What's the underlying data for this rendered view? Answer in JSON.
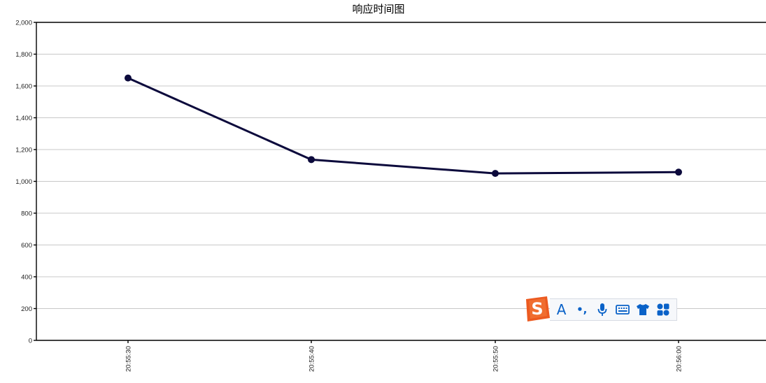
{
  "chart_data": {
    "type": "line",
    "title": "响应时间图",
    "xlabel": "",
    "ylabel": "",
    "categories": [
      "20:55:30",
      "20:55:40",
      "20:55:50",
      "20:56:00"
    ],
    "series": [
      {
        "values": [
          1650,
          1137,
          1050,
          1058
        ]
      }
    ],
    "ylim": [
      0,
      2000
    ],
    "yticks": [
      0,
      200,
      400,
      600,
      800,
      1000,
      1200,
      1400,
      1600,
      1800,
      2000
    ],
    "ytick_labels": [
      "0",
      "200",
      "400",
      "600",
      "800",
      "1,000",
      "1,200",
      "1,400",
      "1,600",
      "1,800",
      "2,000"
    ],
    "grid": true,
    "line_color": "#0c0a3c"
  },
  "ime_toolbar": {
    "logo_icon": "sogou-logo-icon",
    "buttons": [
      {
        "name": "input-mode-icon",
        "label": "A"
      },
      {
        "name": "punctuation-icon",
        "label": "•,"
      },
      {
        "name": "microphone-icon",
        "label": ""
      },
      {
        "name": "keyboard-icon",
        "label": ""
      },
      {
        "name": "skin-shirt-icon",
        "label": ""
      },
      {
        "name": "toolbox-icon",
        "label": ""
      }
    ],
    "accent_color": "#0a62c8",
    "logo_color": "#ec5a20"
  }
}
